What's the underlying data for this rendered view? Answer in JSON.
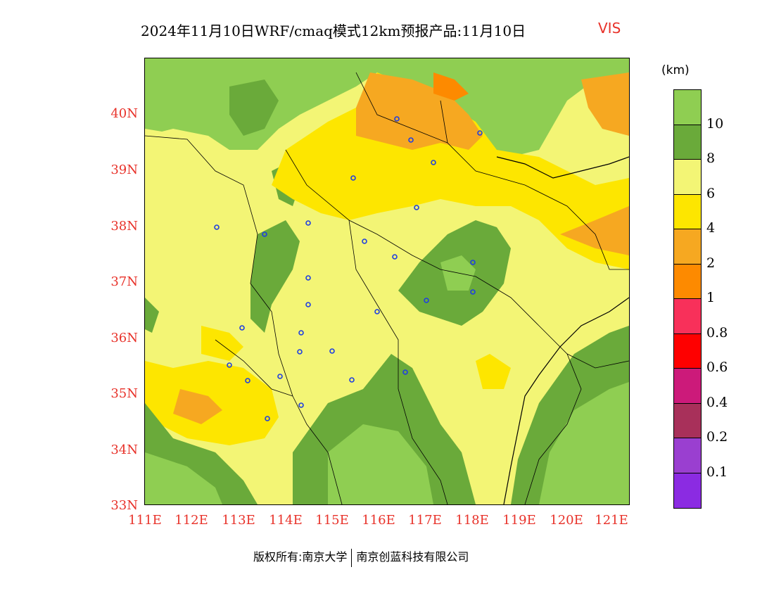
{
  "title": {
    "main": "2024年11月10日WRF/cmaq模式12km预报产品:11月10日",
    "variable": "VIS"
  },
  "axes": {
    "lat_labels": [
      "40N",
      "39N",
      "38N",
      "37N",
      "36N",
      "35N",
      "34N",
      "33N"
    ],
    "lon_labels": [
      "111E",
      "112E",
      "113E",
      "114E",
      "115E",
      "116E",
      "117E",
      "118E",
      "119E",
      "120E",
      "121E"
    ]
  },
  "legend": {
    "unit": "(km)",
    "ticks": [
      "10",
      "8",
      "6",
      "4",
      "2",
      "1",
      "0.8",
      "0.6",
      "0.4",
      "0.2",
      "0.1"
    ],
    "colors": [
      "#8fce52",
      "#6aaa3a",
      "#f3f575",
      "#fde600",
      "#f6a821",
      "#fd8a00",
      "#f8305a",
      "#fe0000",
      "#cc1a7a",
      "#a8305a",
      "#9a3fd0",
      "#8b2be2"
    ]
  },
  "map_colors": {
    "vis_10plus": "#8fce52",
    "vis_8_10": "#6aaa3a",
    "vis_6_8": "#f3f575",
    "vis_4_6": "#fde600",
    "vis_2_4": "#f6a821",
    "vis_1_2": "#fd8a00",
    "station_marker": "#1f3fe0"
  },
  "copyright": {
    "left": "版权所有:南京大学",
    "right": "南京创蓝科技有限公司"
  }
}
